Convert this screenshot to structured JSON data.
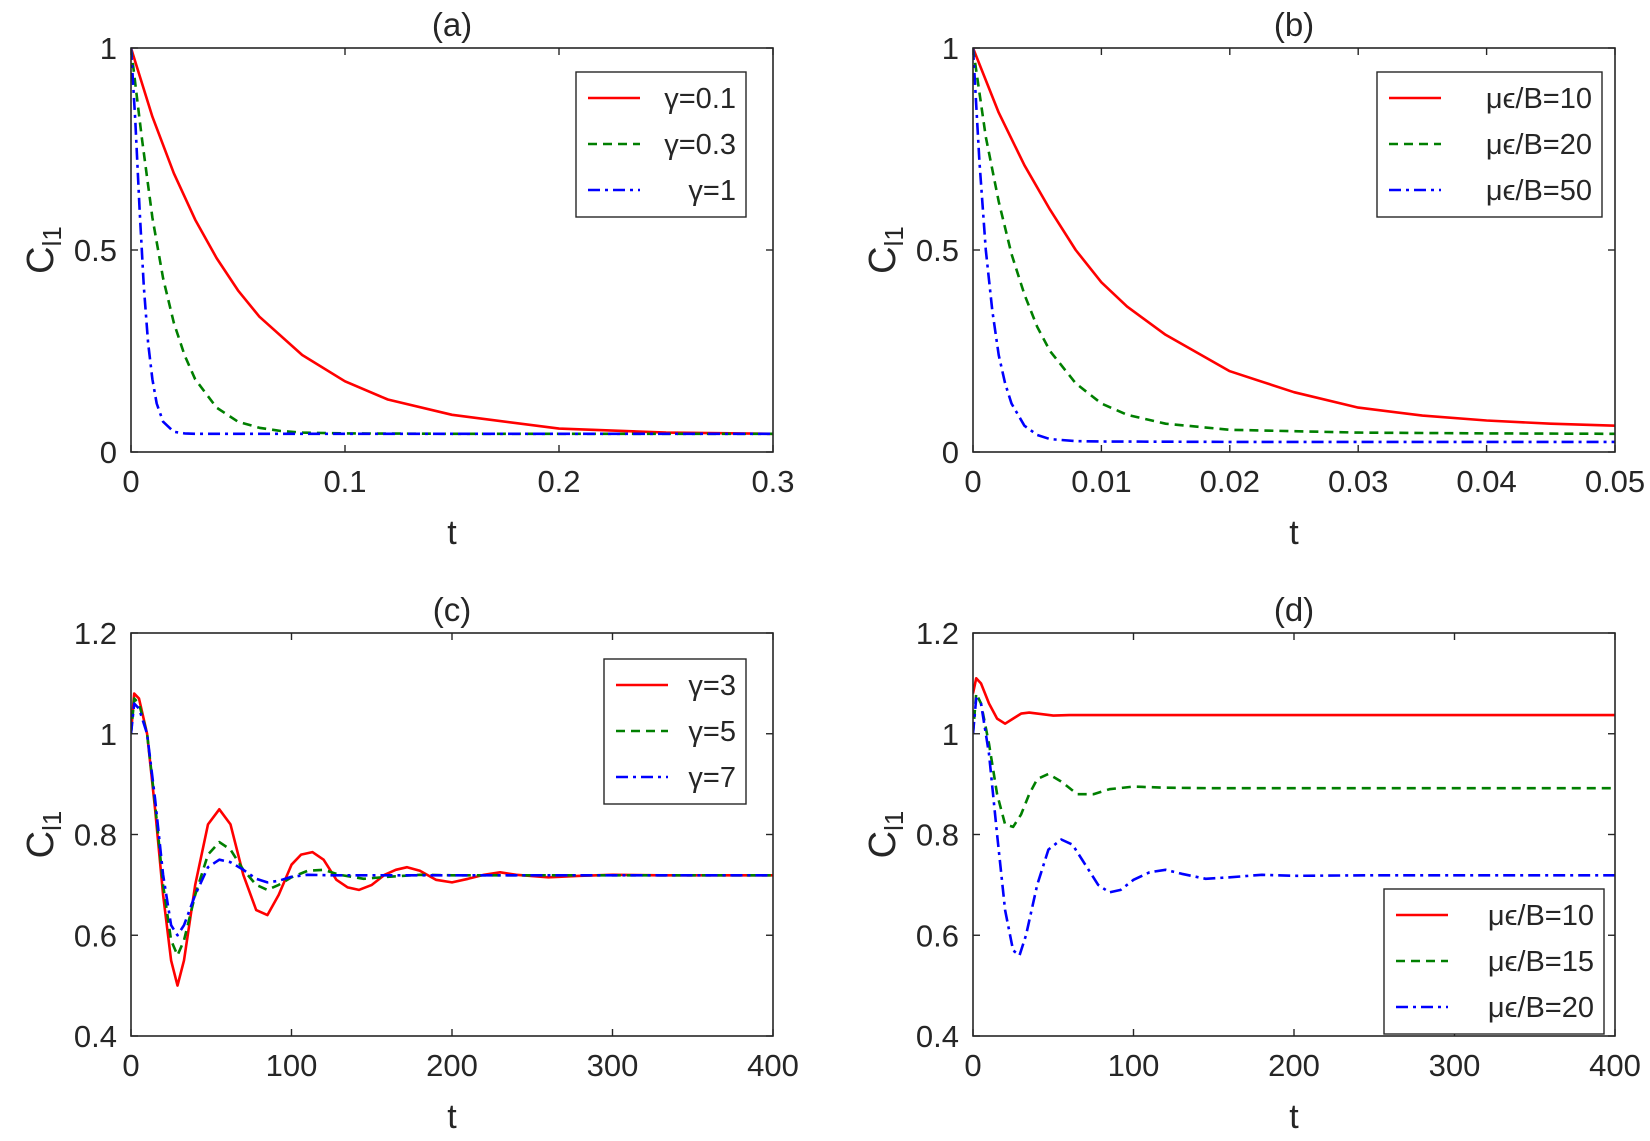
{
  "chart_data": [
    {
      "type": "line",
      "title": "(a)",
      "xlabel": "t",
      "ylabel": "C",
      "ylabel_sub": "l1",
      "xlim": [
        0,
        0.3
      ],
      "ylim": [
        0,
        1
      ],
      "xticks": [
        0,
        0.1,
        0.2,
        0.3
      ],
      "xtick_labels": [
        "0",
        "0.1",
        "0.2",
        "0.3"
      ],
      "yticks": [
        0,
        0.5,
        1
      ],
      "ytick_labels": [
        "0",
        "0.5",
        "1"
      ],
      "legend_position": "top-right",
      "series": [
        {
          "name": "γ=0.1",
          "color": "#ff0000",
          "dash": "solid",
          "x": [
            0,
            0.01,
            0.02,
            0.03,
            0.04,
            0.05,
            0.06,
            0.08,
            0.1,
            0.12,
            0.15,
            0.2,
            0.25,
            0.3
          ],
          "y": [
            1.0,
            0.83,
            0.69,
            0.575,
            0.48,
            0.4,
            0.335,
            0.24,
            0.175,
            0.13,
            0.092,
            0.058,
            0.048,
            0.045
          ]
        },
        {
          "name": "γ=0.3",
          "color": "#007f00",
          "dash": "dashed",
          "x": [
            0,
            0.005,
            0.01,
            0.015,
            0.02,
            0.025,
            0.03,
            0.04,
            0.05,
            0.06,
            0.07,
            0.08,
            0.1,
            0.15,
            0.2,
            0.3
          ],
          "y": [
            1.0,
            0.78,
            0.58,
            0.43,
            0.32,
            0.24,
            0.18,
            0.11,
            0.075,
            0.06,
            0.052,
            0.048,
            0.046,
            0.045,
            0.045,
            0.045
          ]
        },
        {
          "name": "γ=1",
          "color": "#0000ff",
          "dash": "dashdot",
          "x": [
            0,
            0.002,
            0.004,
            0.006,
            0.008,
            0.01,
            0.012,
            0.015,
            0.02,
            0.025,
            0.03,
            0.05,
            0.1,
            0.2,
            0.3
          ],
          "y": [
            1.0,
            0.82,
            0.6,
            0.41,
            0.27,
            0.18,
            0.12,
            0.075,
            0.05,
            0.046,
            0.045,
            0.045,
            0.045,
            0.045,
            0.045
          ]
        }
      ]
    },
    {
      "type": "line",
      "title": "(b)",
      "xlabel": "t",
      "ylabel": "C",
      "ylabel_sub": "l1",
      "xlim": [
        0,
        0.05
      ],
      "ylim": [
        0,
        1
      ],
      "xticks": [
        0,
        0.01,
        0.02,
        0.03,
        0.04,
        0.05
      ],
      "xtick_labels": [
        "0",
        "0.01",
        "0.02",
        "0.03",
        "0.04",
        "0.05"
      ],
      "yticks": [
        0,
        0.5,
        1
      ],
      "ytick_labels": [
        "0",
        "0.5",
        "1"
      ],
      "legend_position": "top-right",
      "series": [
        {
          "name": "μϵ/B=10",
          "color": "#ff0000",
          "dash": "solid",
          "x": [
            0,
            0.002,
            0.004,
            0.006,
            0.008,
            0.01,
            0.012,
            0.015,
            0.02,
            0.025,
            0.03,
            0.035,
            0.04,
            0.045,
            0.05
          ],
          "y": [
            1.0,
            0.84,
            0.71,
            0.6,
            0.5,
            0.42,
            0.36,
            0.29,
            0.2,
            0.148,
            0.11,
            0.09,
            0.078,
            0.07,
            0.065
          ]
        },
        {
          "name": "μϵ/B=20",
          "color": "#007f00",
          "dash": "dashed",
          "x": [
            0,
            0.001,
            0.002,
            0.003,
            0.004,
            0.005,
            0.006,
            0.008,
            0.01,
            0.012,
            0.015,
            0.02,
            0.03,
            0.04,
            0.05
          ],
          "y": [
            1.0,
            0.78,
            0.62,
            0.49,
            0.39,
            0.31,
            0.25,
            0.17,
            0.12,
            0.092,
            0.07,
            0.055,
            0.048,
            0.046,
            0.045
          ]
        },
        {
          "name": "μϵ/B=50",
          "color": "#0000ff",
          "dash": "dashdot",
          "x": [
            0,
            0.0005,
            0.001,
            0.0015,
            0.002,
            0.0025,
            0.003,
            0.004,
            0.005,
            0.006,
            0.008,
            0.01,
            0.02,
            0.05
          ],
          "y": [
            1.0,
            0.72,
            0.5,
            0.35,
            0.24,
            0.17,
            0.12,
            0.065,
            0.042,
            0.032,
            0.027,
            0.026,
            0.025,
            0.025
          ]
        }
      ]
    },
    {
      "type": "line",
      "title": "(c)",
      "xlabel": "t",
      "ylabel": "C",
      "ylabel_sub": "l1",
      "xlim": [
        0,
        400
      ],
      "ylim": [
        0.4,
        1.2
      ],
      "xticks": [
        0,
        100,
        200,
        300,
        400
      ],
      "xtick_labels": [
        "0",
        "100",
        "200",
        "300",
        "400"
      ],
      "yticks": [
        0.4,
        0.6,
        0.8,
        1,
        1.2
      ],
      "ytick_labels": [
        "0.4",
        "0.6",
        "0.8",
        "1",
        "1.2"
      ],
      "legend_position": "top-right",
      "series": [
        {
          "name": "γ=3",
          "color": "#ff0000",
          "dash": "solid",
          "x": [
            0,
            2,
            5,
            10,
            15,
            20,
            25,
            29,
            33,
            40,
            48,
            55,
            62,
            70,
            78,
            85,
            92,
            100,
            106,
            113,
            120,
            128,
            135,
            142,
            150,
            158,
            165,
            172,
            180,
            190,
            200,
            210,
            220,
            230,
            240,
            260,
            280,
            300,
            330,
            400
          ],
          "y": [
            1.0,
            1.08,
            1.07,
            1.0,
            0.85,
            0.68,
            0.55,
            0.5,
            0.55,
            0.7,
            0.82,
            0.85,
            0.82,
            0.72,
            0.65,
            0.64,
            0.68,
            0.74,
            0.76,
            0.765,
            0.75,
            0.71,
            0.695,
            0.69,
            0.7,
            0.72,
            0.73,
            0.735,
            0.728,
            0.71,
            0.705,
            0.712,
            0.72,
            0.725,
            0.72,
            0.715,
            0.718,
            0.72,
            0.719,
            0.719
          ]
        },
        {
          "name": "γ=5",
          "color": "#007f00",
          "dash": "dashed",
          "x": [
            0,
            2,
            5,
            10,
            15,
            20,
            25,
            29,
            33,
            40,
            48,
            55,
            62,
            70,
            78,
            85,
            92,
            100,
            110,
            120,
            130,
            145,
            160,
            180,
            200,
            250,
            300,
            400
          ],
          "y": [
            1.0,
            1.07,
            1.06,
            1.0,
            0.86,
            0.7,
            0.59,
            0.56,
            0.59,
            0.68,
            0.76,
            0.785,
            0.77,
            0.73,
            0.7,
            0.69,
            0.7,
            0.715,
            0.728,
            0.73,
            0.72,
            0.712,
            0.716,
            0.72,
            0.719,
            0.719,
            0.719,
            0.719
          ]
        },
        {
          "name": "γ=7",
          "color": "#0000ff",
          "dash": "dashdot",
          "x": [
            0,
            2,
            5,
            10,
            15,
            20,
            25,
            29,
            33,
            40,
            48,
            55,
            62,
            70,
            78,
            85,
            92,
            100,
            110,
            125,
            150,
            200,
            300,
            400
          ],
          "y": [
            1.0,
            1.06,
            1.05,
            1.0,
            0.87,
            0.72,
            0.62,
            0.6,
            0.62,
            0.68,
            0.735,
            0.75,
            0.745,
            0.73,
            0.712,
            0.705,
            0.708,
            0.716,
            0.72,
            0.719,
            0.719,
            0.719,
            0.719,
            0.719
          ]
        }
      ]
    },
    {
      "type": "line",
      "title": "(d)",
      "xlabel": "t",
      "ylabel": "C",
      "ylabel_sub": "l1",
      "xlim": [
        0,
        400
      ],
      "ylim": [
        0.4,
        1.2
      ],
      "xticks": [
        0,
        100,
        200,
        300,
        400
      ],
      "xtick_labels": [
        "0",
        "100",
        "200",
        "300",
        "400"
      ],
      "yticks": [
        0.4,
        0.6,
        0.8,
        1,
        1.2
      ],
      "ytick_labels": [
        "0.4",
        "0.6",
        "0.8",
        "1",
        "1.2"
      ],
      "legend_position": "bottom-right",
      "series": [
        {
          "name": "μϵ/B=10",
          "color": "#ff0000",
          "dash": "solid",
          "x": [
            0,
            2,
            5,
            10,
            15,
            20,
            25,
            30,
            35,
            40,
            50,
            60,
            80,
            100,
            200,
            300,
            400
          ],
          "y": [
            1.08,
            1.11,
            1.1,
            1.06,
            1.03,
            1.02,
            1.03,
            1.04,
            1.042,
            1.04,
            1.036,
            1.037,
            1.037,
            1.037,
            1.037,
            1.037,
            1.037
          ]
        },
        {
          "name": "μϵ/B=15",
          "color": "#007f00",
          "dash": "dashed",
          "x": [
            0,
            2,
            5,
            10,
            15,
            20,
            25,
            30,
            35,
            40,
            47,
            55,
            65,
            75,
            85,
            100,
            120,
            150,
            200,
            300,
            400
          ],
          "y": [
            1.0,
            1.08,
            1.06,
            0.98,
            0.88,
            0.82,
            0.815,
            0.84,
            0.88,
            0.91,
            0.92,
            0.905,
            0.88,
            0.88,
            0.89,
            0.895,
            0.893,
            0.892,
            0.892,
            0.892,
            0.892
          ]
        },
        {
          "name": "μϵ/B=20",
          "color": "#0000ff",
          "dash": "dashdot",
          "x": [
            0,
            2,
            5,
            10,
            15,
            20,
            25,
            29,
            33,
            40,
            47,
            55,
            62,
            70,
            78,
            85,
            92,
            100,
            110,
            120,
            130,
            145,
            160,
            180,
            200,
            250,
            300,
            400
          ],
          "y": [
            1.0,
            1.07,
            1.06,
            0.96,
            0.8,
            0.65,
            0.57,
            0.56,
            0.6,
            0.7,
            0.77,
            0.79,
            0.78,
            0.74,
            0.7,
            0.685,
            0.69,
            0.71,
            0.725,
            0.73,
            0.722,
            0.712,
            0.715,
            0.72,
            0.718,
            0.719,
            0.719,
            0.719
          ]
        }
      ]
    }
  ]
}
